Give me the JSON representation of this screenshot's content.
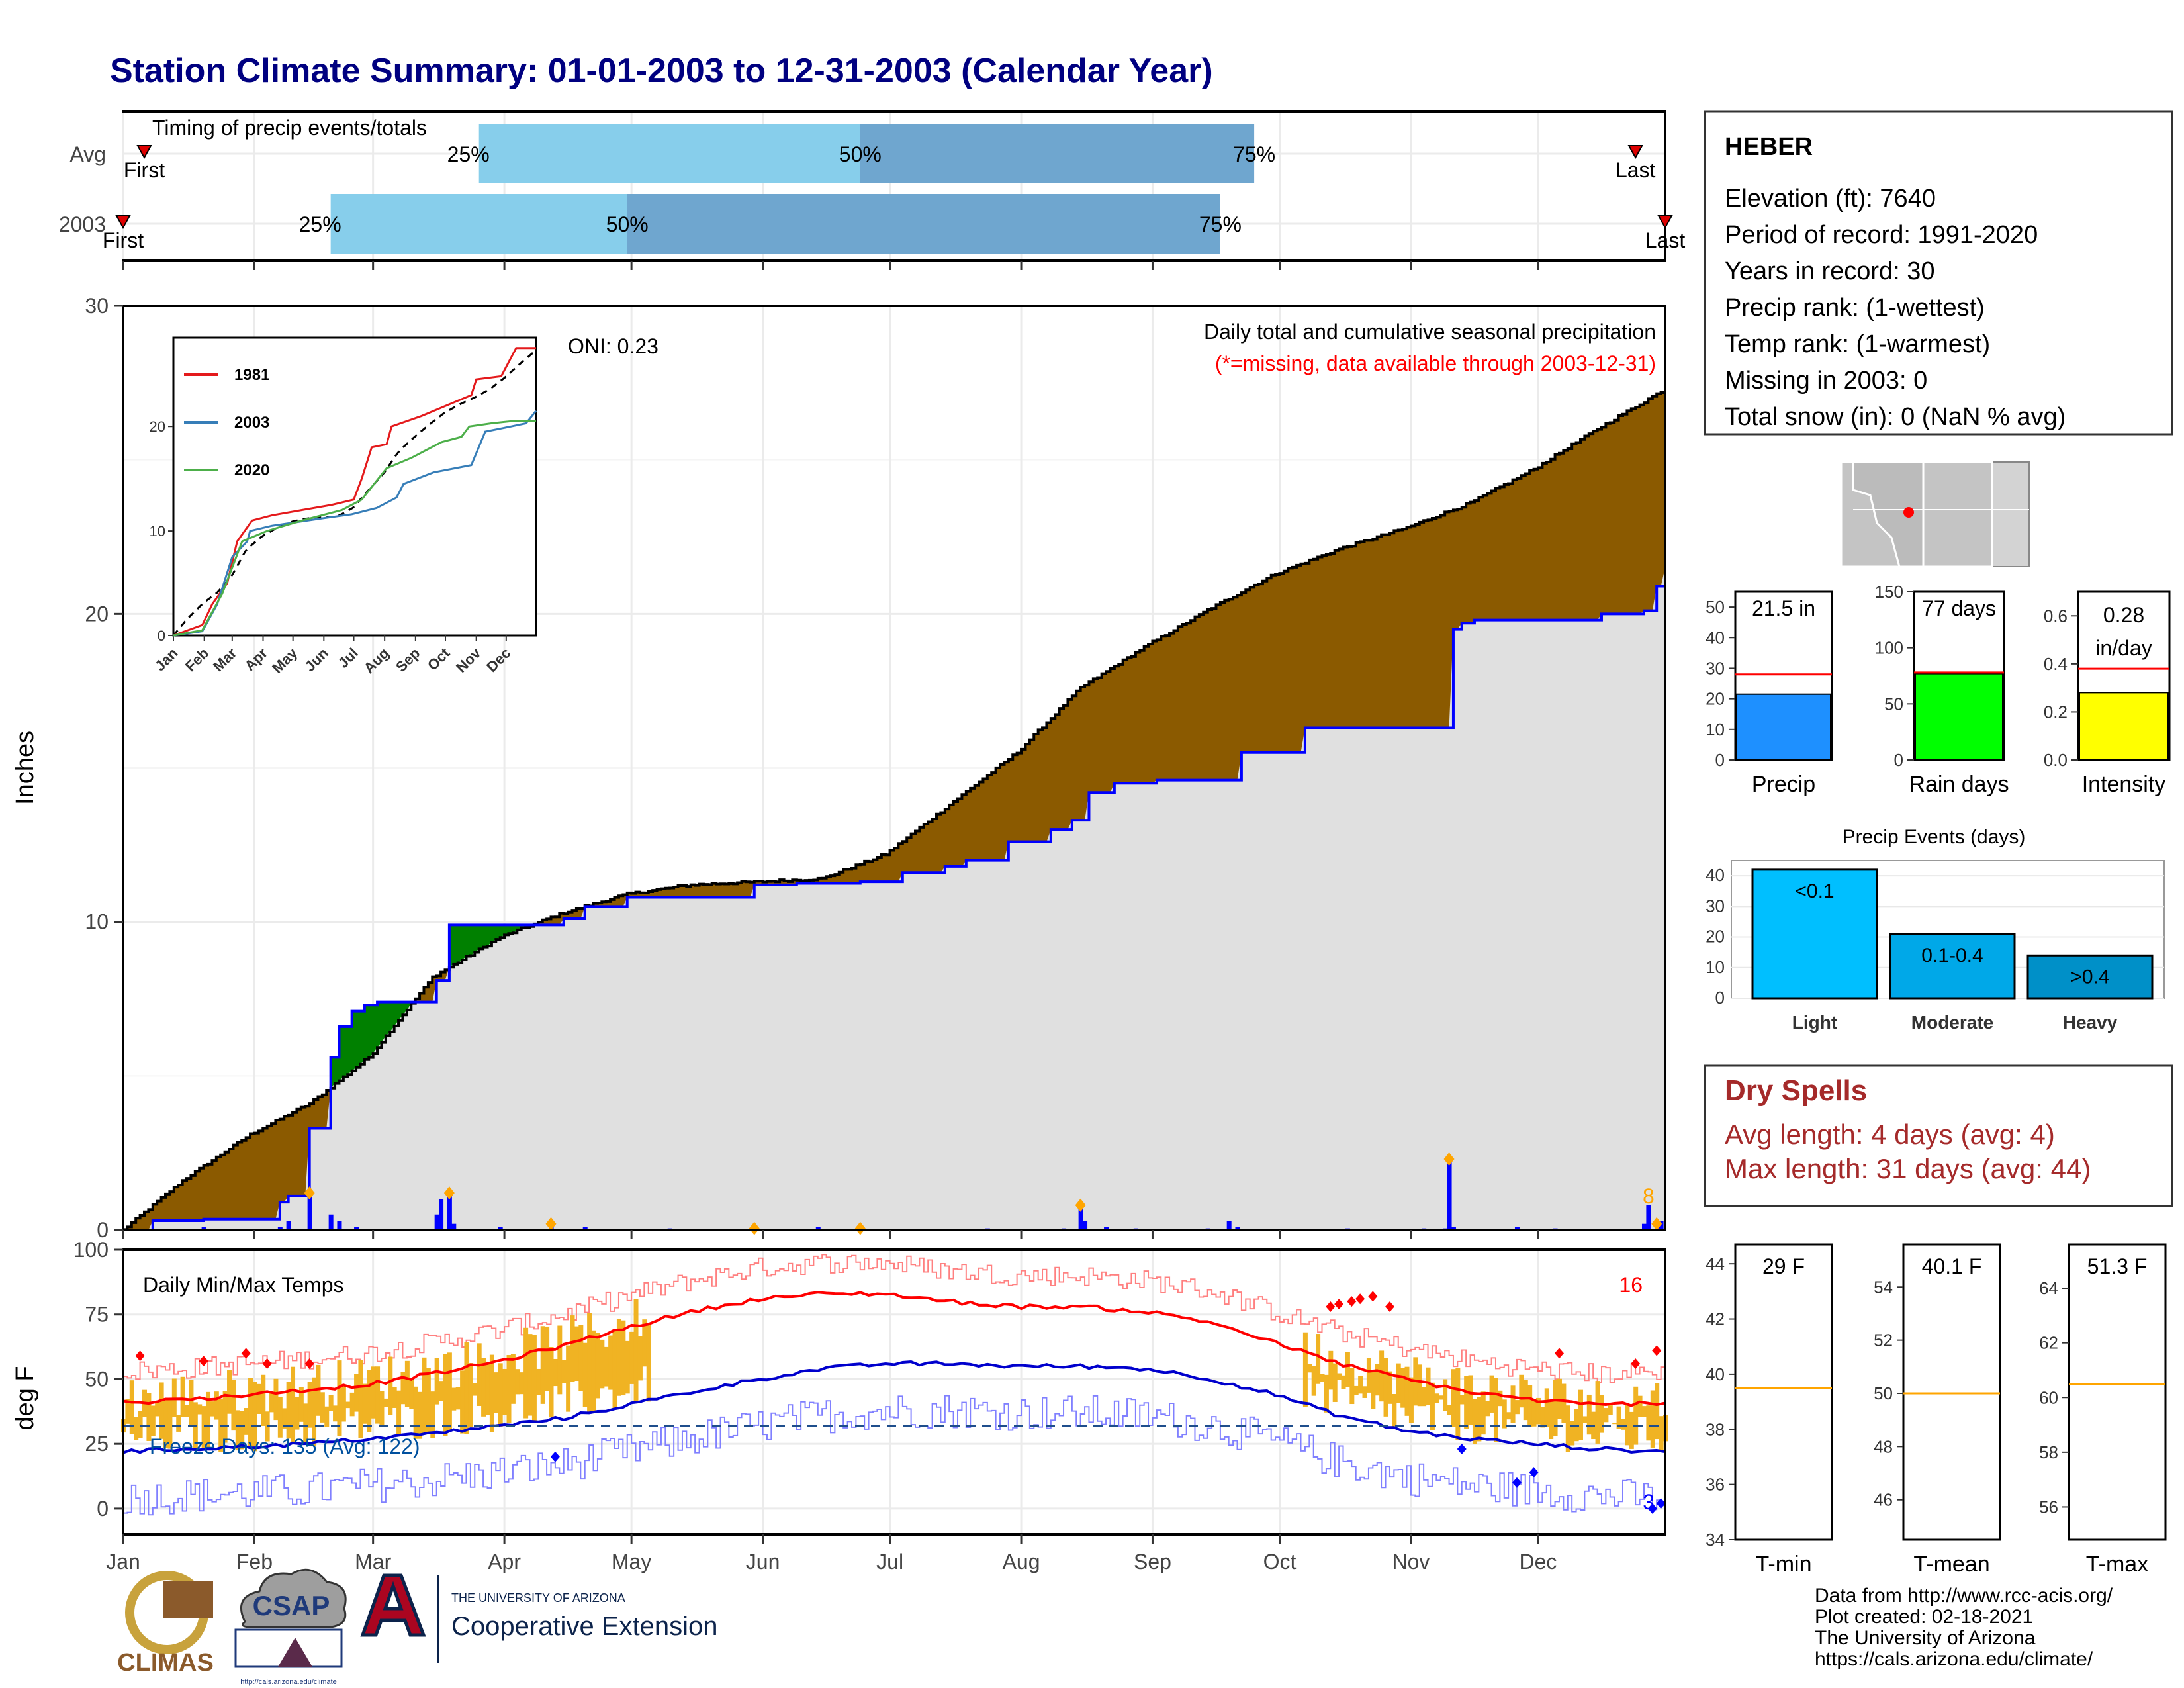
{
  "title": "Station Climate Summary: 01-01-2003 to 12-31-2003 (Calendar Year)",
  "months": [
    "Jan",
    "Feb",
    "Mar",
    "Apr",
    "May",
    "Jun",
    "Jul",
    "Aug",
    "Sep",
    "Oct",
    "Nov",
    "Dec"
  ],
  "timing": {
    "title": "Timing of precip events/totals",
    "rows": [
      {
        "label": "Avg",
        "first_label": "First",
        "last_label": "Last",
        "pct25": "25%",
        "pct50": "50%",
        "pct75": "75%",
        "first_day": 6,
        "day25": 85,
        "day50": 175,
        "day75": 268,
        "last_day": 358
      },
      {
        "label": "2003",
        "first_label": "First",
        "last_label": "Last",
        "pct25": "25%",
        "pct50": "50%",
        "pct75": "75%",
        "first_day": 1,
        "day25": 50,
        "day50": 120,
        "day75": 260,
        "last_day": 365
      }
    ]
  },
  "station": {
    "name": "HEBER",
    "lines": [
      "Elevation (ft): 7640",
      "Period of record: 1991-2020",
      "Years in record: 30",
      "Precip rank:  (1-wettest)",
      "Temp rank:  (1-warmest)",
      "Missing in 2003: 0",
      "Total snow (in): 0 (NaN % avg)"
    ]
  },
  "precip_panel": {
    "ylabel": "Inches",
    "caption": "Daily total and cumulative seasonal precipitation",
    "missing_note": "(*=missing, data available through 2003-12-31)",
    "oni": "ONI: 0.23",
    "max_daily_label": "8",
    "y_ticks": [
      "0",
      "10",
      "20",
      "30"
    ],
    "colors": {
      "below": "#8B5A00",
      "above": "#008000",
      "obs_line": "#0000FF",
      "fill": "#E0E0E0",
      "normal_line": "#000000"
    }
  },
  "inset": {
    "x_ticks": [
      "Jan",
      "Feb",
      "Mar",
      "Apr",
      "May",
      "Jun",
      "Jul",
      "Aug",
      "Sep",
      "Oct",
      "Nov",
      "Dec"
    ],
    "y_ticks": [
      "0",
      "10",
      "20"
    ],
    "legend": [
      {
        "name": "1981",
        "color": "#E41A1C"
      },
      {
        "name": "2003",
        "color": "#377EB8"
      },
      {
        "name": "2020",
        "color": "#4DAF4A"
      }
    ]
  },
  "temp_panel": {
    "ylabel": "deg F",
    "title": "Daily Min/Max Temps",
    "freeze_label": "Freeze Days: 135 (Avg: 122)",
    "hot_count": "16",
    "cold_count": "3",
    "y_ticks": [
      "0",
      "25",
      "50",
      "75",
      "100"
    ]
  },
  "gauges": {
    "precip": {
      "label": "Precip",
      "value_text": "21.5 in",
      "value": 21.5,
      "avg": 28,
      "ymax": 55,
      "ticks": [
        "0",
        "10",
        "20",
        "30",
        "40",
        "50"
      ],
      "color": "#1E90FF"
    },
    "rain_days": {
      "label": "Rain days",
      "value_text": "77 days",
      "value": 77,
      "avg": 78,
      "ymax": 150,
      "ticks": [
        "0",
        "50",
        "100",
        "150"
      ],
      "color": "#00FF00"
    },
    "intensity": {
      "label": "Intensity",
      "value_text_1": "0.28",
      "value_text_2": "in/day",
      "value": 0.28,
      "avg": 0.38,
      "ymax": 0.7,
      "ticks": [
        "0.0",
        "0.2",
        "0.4",
        "0.6"
      ],
      "color": "#FFFF00"
    }
  },
  "events": {
    "title": "Precip Events (days)",
    "categories": [
      "Light",
      "Moderate",
      "Heavy"
    ],
    "bar_labels": [
      "<0.1",
      "0.1-0.4",
      ">0.4"
    ],
    "values": [
      42,
      21,
      14
    ],
    "ticks": [
      "0",
      "10",
      "20",
      "30",
      "40"
    ],
    "colors": [
      "#00BFFF",
      "#00A8E8",
      "#0090C8"
    ]
  },
  "dry_spells": {
    "title": "Dry Spells",
    "avg_line": "Avg length: 4 days (avg: 4)",
    "max_line": "Max length: 31 days (avg: 44)"
  },
  "temp_gauges": [
    {
      "label": "T-min",
      "value_text": "29 F",
      "value": 29,
      "avg": 39.5,
      "ymin": 34,
      "ymax": 44.7,
      "ticks": [
        "34",
        "36",
        "38",
        "40",
        "42",
        "44"
      ]
    },
    {
      "label": "T-mean",
      "value_text": "40.1 F",
      "value": 40.1,
      "avg": 50,
      "ymin": 44.5,
      "ymax": 55.6,
      "ticks": [
        "46",
        "48",
        "50",
        "52",
        "54"
      ]
    },
    {
      "label": "T-max",
      "value_text": "51.3 F",
      "value": 51.3,
      "avg": 60.5,
      "ymin": 54.8,
      "ymax": 65.6,
      "ticks": [
        "56",
        "58",
        "60",
        "62",
        "64"
      ]
    }
  ],
  "footer": [
    "Data from http://www.rcc-acis.org/",
    "Plot created: 02-18-2021",
    "The University of Arizona",
    "https://cals.arizona.edu/climate/"
  ],
  "logos": {
    "climas": "CLIMAS",
    "csap": "CSAP",
    "csap_url": "http://cals.arizona.edu/climate",
    "ua_small": "THE UNIVERSITY OF ARIZONA",
    "ua_big": "Cooperative Extension"
  },
  "chart_data": [
    {
      "type": "area",
      "title": "Daily total and cumulative seasonal precipitation",
      "ylabel": "Inches",
      "ylim": [
        0,
        30
      ],
      "x_unit": "day of year",
      "normal_cumulative": {
        "x": [
          1,
          15,
          31,
          45,
          59,
          74,
          90,
          105,
          120,
          135,
          151,
          166,
          181,
          196,
          212,
          227,
          243,
          258,
          273,
          288,
          304,
          319,
          334,
          349,
          365
        ],
        "y": [
          0,
          1.6,
          3.1,
          4.1,
          5.6,
          8.2,
          9.5,
          10.3,
          10.9,
          11.2,
          11.3,
          11.4,
          12.2,
          13.8,
          15.5,
          17.6,
          19.0,
          20.2,
          21.3,
          22.1,
          22.8,
          23.6,
          24.7,
          26.0,
          27.3
        ]
      },
      "observed_cumulative": {
        "x": [
          1,
          8,
          20,
          39,
          38,
          40,
          45,
          50,
          52,
          55,
          58,
          61,
          75,
          78,
          91,
          105,
          110,
          120,
          150,
          160,
          175,
          185,
          195,
          200,
          210,
          220,
          225,
          229,
          235,
          245,
          265,
          280,
          290,
          300,
          314,
          315,
          317,
          320,
          350,
          360,
          363,
          365
        ],
        "y": [
          0,
          0.3,
          0.35,
          0.45,
          0.9,
          1.1,
          3.3,
          5.6,
          6.6,
          7.1,
          7.3,
          7.4,
          8.1,
          9.9,
          9.9,
          10.1,
          10.5,
          10.8,
          11.2,
          11.25,
          11.3,
          11.6,
          11.8,
          12.0,
          12.6,
          13.0,
          13.3,
          14.2,
          14.5,
          14.6,
          15.5,
          16.3,
          16.3,
          16.3,
          16.3,
          19.5,
          19.7,
          19.8,
          20.0,
          20.1,
          20.9,
          21.5
        ]
      },
      "daily_precip": [
        [
          20,
          0.1
        ],
        [
          38,
          0.1
        ],
        [
          40,
          0.3
        ],
        [
          45,
          1.2
        ],
        [
          50,
          0.5
        ],
        [
          52,
          0.3
        ],
        [
          56,
          0.1
        ],
        [
          75,
          0.5
        ],
        [
          76,
          1.0
        ],
        [
          78,
          1.2
        ],
        [
          79,
          0.2
        ],
        [
          90,
          0.1
        ],
        [
          102,
          0.1
        ],
        [
          110,
          0.1
        ],
        [
          130,
          0.05
        ],
        [
          165,
          0.1
        ],
        [
          175,
          0.02
        ],
        [
          205,
          0.05
        ],
        [
          223,
          0.05
        ],
        [
          227,
          0.8
        ],
        [
          228,
          0.3
        ],
        [
          233,
          0.1
        ],
        [
          240,
          0.05
        ],
        [
          257,
          0.05
        ],
        [
          262,
          0.3
        ],
        [
          264,
          0.1
        ],
        [
          290,
          0.05
        ],
        [
          308,
          0.05
        ],
        [
          313,
          0.05
        ],
        [
          314,
          2.3
        ],
        [
          315,
          0.1
        ],
        [
          330,
          0.1
        ],
        [
          339,
          0.05
        ],
        [
          360,
          0.2
        ],
        [
          361,
          0.8
        ],
        [
          363,
          0.2
        ],
        [
          364,
          0.3
        ]
      ]
    },
    {
      "type": "line",
      "title": "Daily Min/Max Temps",
      "ylabel": "deg F",
      "ylim": [
        -10,
        100
      ],
      "x_unit": "day of year",
      "series": [
        {
          "name": "avg max",
          "x": [
            1,
            15,
            31,
            45,
            59,
            74,
            90,
            105,
            120,
            135,
            151,
            166,
            181,
            196,
            212,
            227,
            243,
            258,
            273,
            288,
            304,
            319,
            334,
            349,
            365
          ],
          "y": [
            41,
            42,
            44,
            46,
            48,
            52,
            57,
            63,
            70,
            76,
            81,
            83,
            83,
            80,
            78,
            78,
            76,
            72,
            64,
            56,
            50,
            45,
            42,
            40,
            41
          ]
        },
        {
          "name": "avg min",
          "x": [
            1,
            15,
            31,
            45,
            59,
            74,
            90,
            105,
            120,
            135,
            151,
            166,
            181,
            196,
            212,
            227,
            243,
            258,
            273,
            288,
            304,
            319,
            334,
            349,
            365
          ],
          "y": [
            22,
            23,
            24,
            25,
            27,
            29,
            32,
            35,
            40,
            45,
            50,
            54,
            56,
            56,
            55,
            55,
            54,
            50,
            44,
            36,
            30,
            27,
            25,
            23,
            22
          ]
        },
        {
          "name": "freeze line",
          "x": [
            1,
            365
          ],
          "y": [
            32,
            32
          ]
        }
      ]
    },
    {
      "type": "bar",
      "title": "Precip Events (days)",
      "categories": [
        "Light",
        "Moderate",
        "Heavy"
      ],
      "values": [
        42,
        21,
        14
      ],
      "ylim": [
        0,
        45
      ]
    },
    {
      "type": "bar",
      "categories": [
        "Precip",
        "Rain days",
        "Intensity"
      ],
      "values": [
        21.5,
        77,
        0.28
      ],
      "averages": [
        28,
        78,
        0.38
      ]
    },
    {
      "type": "bar",
      "categories": [
        "T-min",
        "T-mean",
        "T-max"
      ],
      "values": [
        29,
        40.1,
        51.3
      ],
      "averages": [
        39.5,
        50,
        60.5
      ]
    }
  ]
}
